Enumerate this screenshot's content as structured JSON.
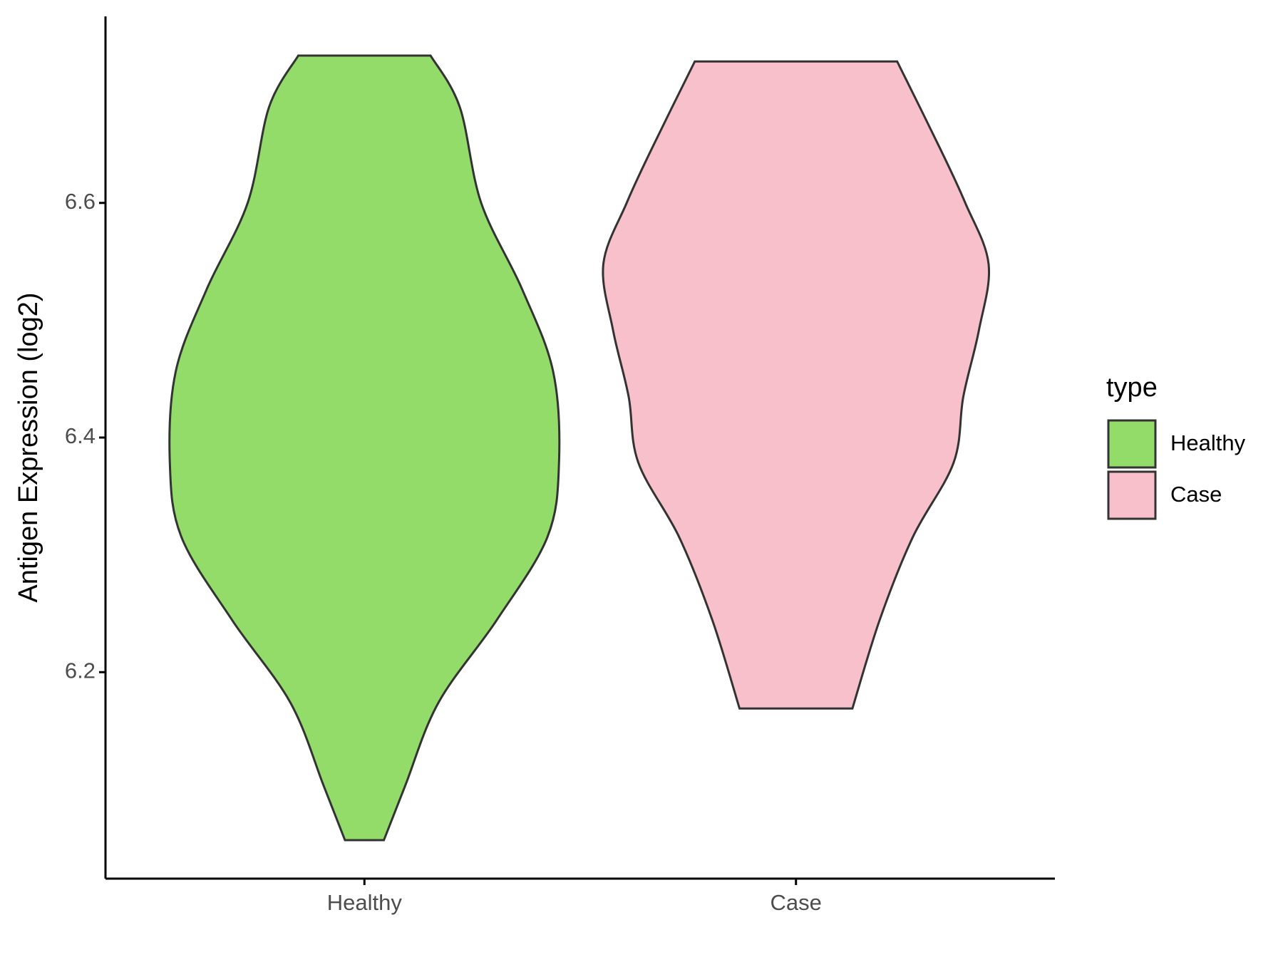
{
  "chart_data": {
    "type": "violin",
    "y_label": "Antigen Expression (log2)",
    "categories": [
      "Healthy",
      "Case"
    ],
    "ylim": [
      6.024,
      6.759
    ],
    "yticks": [
      6.2,
      6.4,
      6.6
    ],
    "legend_title": "type",
    "legend_position": "right",
    "series": [
      {
        "name": "Healthy",
        "color": "#93dc6a",
        "y": [
          6.0568,
          6.1034,
          6.1739,
          6.2444,
          6.315,
          6.3785,
          6.4561,
          6.5266,
          6.6,
          6.6818,
          6.7256
        ],
        "width": [
          0.1,
          0.21,
          0.38,
          0.68,
          0.94,
          1.0,
          0.97,
          0.81,
          0.6,
          0.49,
          0.34
        ]
      },
      {
        "name": "Case",
        "color": "#f7c0cb",
        "y": [
          6.169,
          6.2444,
          6.315,
          6.3785,
          6.4349,
          6.4914,
          6.5478,
          6.6,
          6.6466,
          6.7206
        ],
        "width": [
          0.29,
          0.43,
          0.6,
          0.81,
          0.86,
          0.94,
          0.99,
          0.87,
          0.74,
          0.52
        ]
      }
    ]
  }
}
